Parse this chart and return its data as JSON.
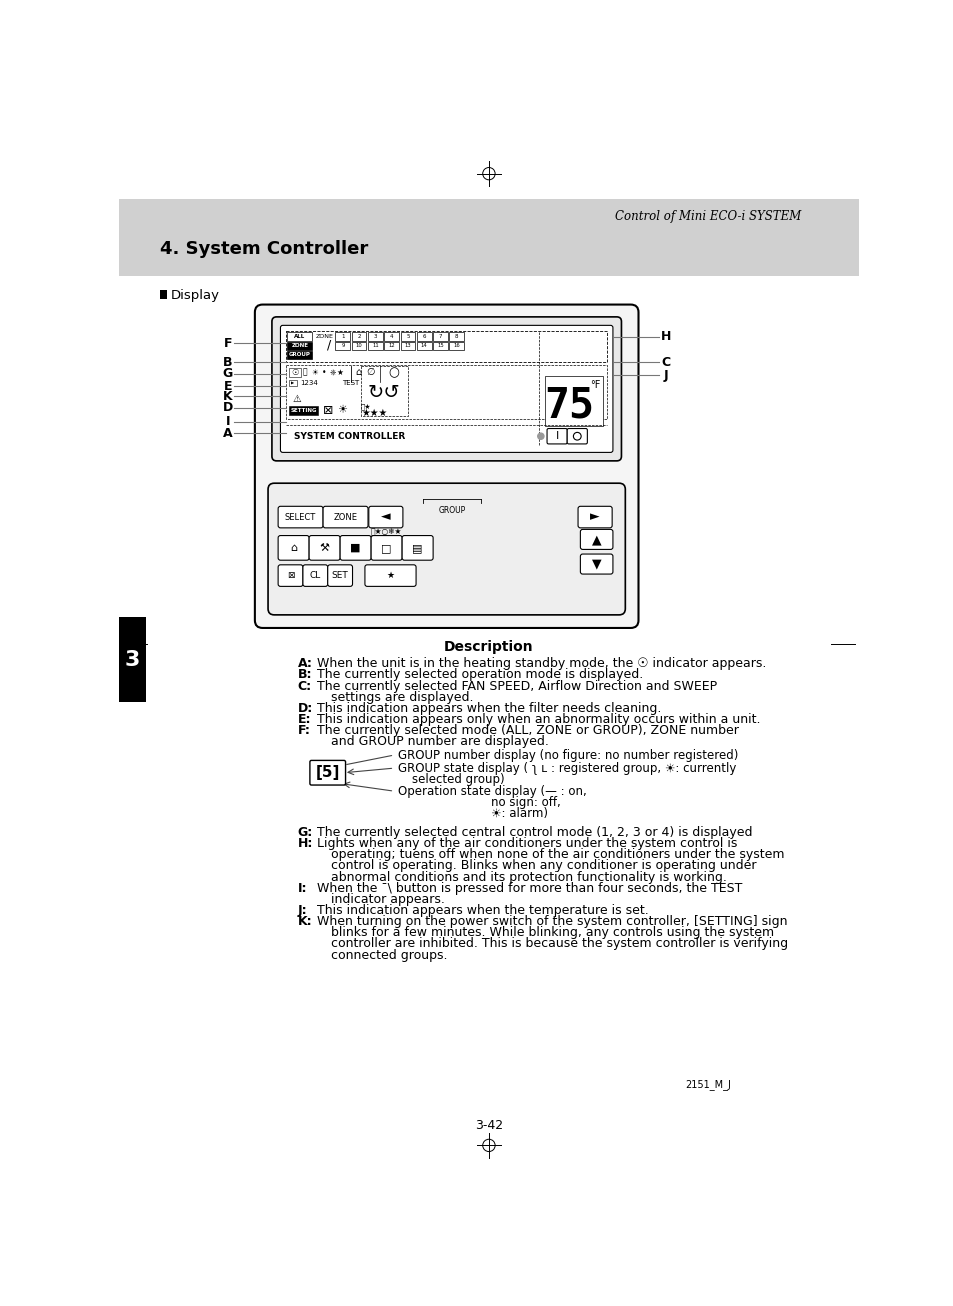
{
  "page_title": "Control of Mini ECO-i SYSTEM",
  "section_title": "4. System Controller",
  "display_label": "Display",
  "description_title": "Description",
  "sidebar_number": "3",
  "footer_code": "2151_M_J",
  "page_number": "3-42",
  "bg_gray": "#d4d4d4",
  "desc_items_A_F": [
    [
      "A",
      "When the unit is in the heating standby mode, the ☉ indicator appears."
    ],
    [
      "B",
      "The currently selected operation mode is displayed."
    ],
    [
      "C",
      "The currently selected FAN SPEED, Airflow Direction and SWEEP\nsettings are displayed."
    ],
    [
      "D",
      "This indication appears when the filter needs cleaning."
    ],
    [
      "E",
      "This indication appears only when an abnormality occurs within a unit."
    ],
    [
      "F",
      "The currently selected mode (ALL, ZONE or GROUP), ZONE number\nand GROUP number are displayed."
    ]
  ],
  "desc_items_G_K": [
    [
      "G",
      "The currently selected central control mode (1, 2, 3 or 4) is displayed"
    ],
    [
      "H",
      "Lights when any of the air conditioners under the system control is\noperating; tuens off when none of the air conditioners under the system\ncontrol is operating. Blinks when any conditioner is operating under\nabnormal conditions and its protection functionality is working."
    ],
    [
      "I",
      "When the ¯\\ button is pressed for more than four seconds, the TEST\nindicator appears."
    ],
    [
      "J",
      "This indication appears when the temperature is set."
    ],
    [
      "K",
      "When turning on the power switch of the system controller, [SETTING] sign\nblinks for a few minutes. While blinking, any controls using the system\ncontroller are inhibited. This is because the system controller is verifying\nconnected groups."
    ]
  ],
  "group_line1": "GROUP number display (no figure: no number registered)",
  "group_line2": "GROUP state display ( ʅ ʟ : registered group, ☀: currently",
  "group_line2b": "selected group)",
  "group_line3": "Operation state display (— : on,",
  "group_line3b": "no sign: off,",
  "group_line3c": "☀: alarm)"
}
